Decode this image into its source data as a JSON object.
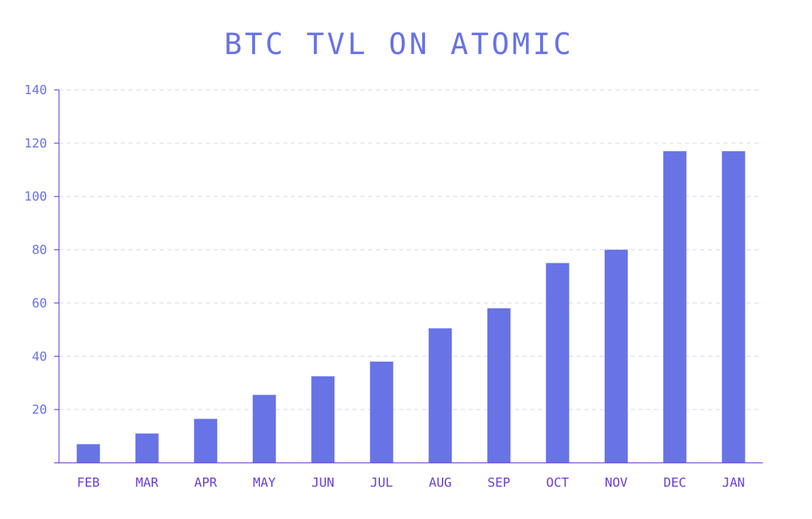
{
  "chart_data": {
    "type": "bar",
    "title": "BTC TVL ON ATOMIC",
    "xlabel": "",
    "ylabel": "",
    "categories": [
      "FEB",
      "MAR",
      "APR",
      "MAY",
      "JUN",
      "JUL",
      "AUG",
      "SEP",
      "OCT",
      "NOV",
      "DEC",
      "JAN"
    ],
    "values": [
      7,
      11,
      16.5,
      25.5,
      32.5,
      38,
      50.5,
      58,
      75,
      80,
      117,
      117
    ],
    "ylim": [
      0,
      140
    ],
    "yticks": [
      20,
      40,
      60,
      80,
      100,
      120,
      140
    ],
    "grid": true,
    "colors": {
      "bar": "#6873e6",
      "axis": "#6a3fd8",
      "grid": "#cfd2f0",
      "title": "#6873e6"
    }
  }
}
